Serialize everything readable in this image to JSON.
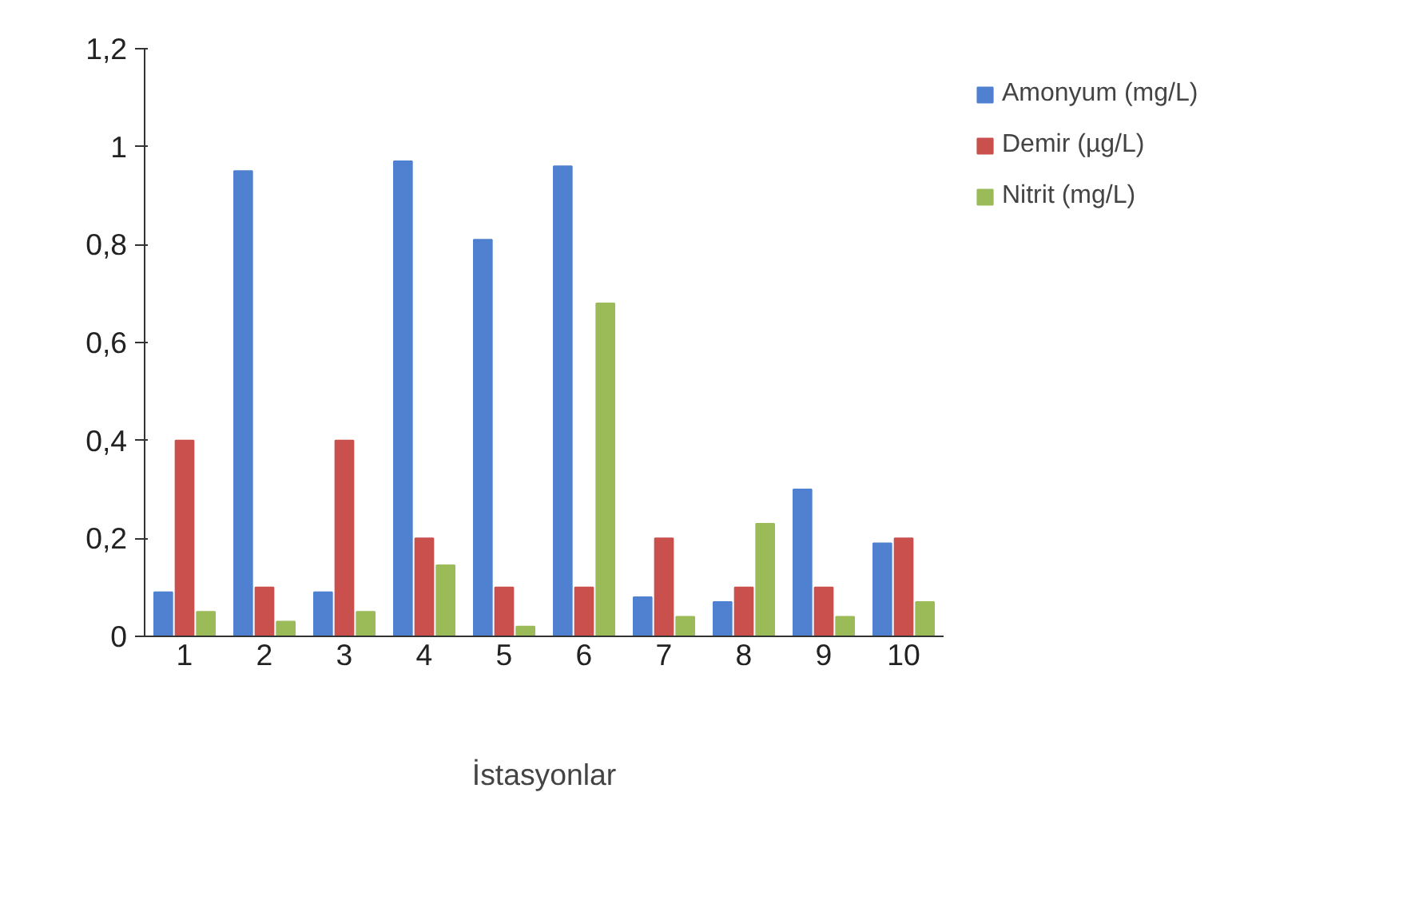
{
  "chart_data": {
    "type": "bar",
    "xlabel": "İstasyonlar",
    "categories": [
      "1",
      "2",
      "3",
      "4",
      "5",
      "6",
      "7",
      "8",
      "9",
      "10"
    ],
    "series": [
      {
        "name": "Amonyum (mg/L)",
        "color": "#4f81d0",
        "values": [
          0.09,
          0.95,
          0.09,
          0.97,
          0.81,
          0.96,
          0.08,
          0.07,
          0.3,
          0.19
        ]
      },
      {
        "name": "Demir (µg/L)",
        "color": "#c9504d",
        "values": [
          0.4,
          0.1,
          0.4,
          0.2,
          0.1,
          0.1,
          0.2,
          0.1,
          0.1,
          0.2
        ]
      },
      {
        "name": "Nitrit (mg/L)",
        "color": "#9bbb59",
        "values": [
          0.05,
          0.03,
          0.05,
          0.145,
          0.02,
          0.68,
          0.04,
          0.23,
          0.04,
          0.07
        ]
      }
    ],
    "ylim": [
      0,
      1.2
    ],
    "yticks": [
      0,
      {
        "value": 0.2,
        "label": "0,2"
      },
      {
        "value": 0.4,
        "label": "0,4"
      },
      {
        "value": 0.6,
        "label": "0,6"
      },
      {
        "value": 0.8,
        "label": "0,8"
      },
      1,
      {
        "value": 1.2,
        "label": "1,2"
      }
    ],
    "grid": false,
    "legend": "right"
  }
}
